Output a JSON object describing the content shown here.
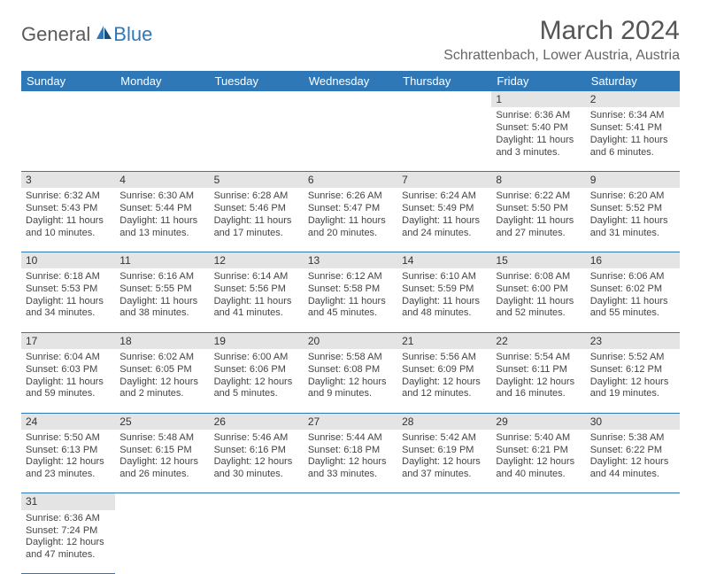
{
  "brand": {
    "general": "General",
    "blue": "Blue"
  },
  "title": "March 2024",
  "subtitle": "Schrattenbach, Lower Austria, Austria",
  "colors": {
    "header_bg": "#2f78b8",
    "header_text": "#ffffff",
    "daynum_bg": "#e4e4e4",
    "cell_border": "#2f78b8",
    "text": "#444444",
    "title_color": "#555555"
  },
  "weekdays": [
    "Sunday",
    "Monday",
    "Tuesday",
    "Wednesday",
    "Thursday",
    "Friday",
    "Saturday"
  ],
  "weeks": [
    [
      null,
      null,
      null,
      null,
      null,
      {
        "n": "1",
        "sr": "Sunrise: 6:36 AM",
        "ss": "Sunset: 5:40 PM",
        "d1": "Daylight: 11 hours",
        "d2": "and 3 minutes."
      },
      {
        "n": "2",
        "sr": "Sunrise: 6:34 AM",
        "ss": "Sunset: 5:41 PM",
        "d1": "Daylight: 11 hours",
        "d2": "and 6 minutes."
      }
    ],
    [
      {
        "n": "3",
        "sr": "Sunrise: 6:32 AM",
        "ss": "Sunset: 5:43 PM",
        "d1": "Daylight: 11 hours",
        "d2": "and 10 minutes."
      },
      {
        "n": "4",
        "sr": "Sunrise: 6:30 AM",
        "ss": "Sunset: 5:44 PM",
        "d1": "Daylight: 11 hours",
        "d2": "and 13 minutes."
      },
      {
        "n": "5",
        "sr": "Sunrise: 6:28 AM",
        "ss": "Sunset: 5:46 PM",
        "d1": "Daylight: 11 hours",
        "d2": "and 17 minutes."
      },
      {
        "n": "6",
        "sr": "Sunrise: 6:26 AM",
        "ss": "Sunset: 5:47 PM",
        "d1": "Daylight: 11 hours",
        "d2": "and 20 minutes."
      },
      {
        "n": "7",
        "sr": "Sunrise: 6:24 AM",
        "ss": "Sunset: 5:49 PM",
        "d1": "Daylight: 11 hours",
        "d2": "and 24 minutes."
      },
      {
        "n": "8",
        "sr": "Sunrise: 6:22 AM",
        "ss": "Sunset: 5:50 PM",
        "d1": "Daylight: 11 hours",
        "d2": "and 27 minutes."
      },
      {
        "n": "9",
        "sr": "Sunrise: 6:20 AM",
        "ss": "Sunset: 5:52 PM",
        "d1": "Daylight: 11 hours",
        "d2": "and 31 minutes."
      }
    ],
    [
      {
        "n": "10",
        "sr": "Sunrise: 6:18 AM",
        "ss": "Sunset: 5:53 PM",
        "d1": "Daylight: 11 hours",
        "d2": "and 34 minutes."
      },
      {
        "n": "11",
        "sr": "Sunrise: 6:16 AM",
        "ss": "Sunset: 5:55 PM",
        "d1": "Daylight: 11 hours",
        "d2": "and 38 minutes."
      },
      {
        "n": "12",
        "sr": "Sunrise: 6:14 AM",
        "ss": "Sunset: 5:56 PM",
        "d1": "Daylight: 11 hours",
        "d2": "and 41 minutes."
      },
      {
        "n": "13",
        "sr": "Sunrise: 6:12 AM",
        "ss": "Sunset: 5:58 PM",
        "d1": "Daylight: 11 hours",
        "d2": "and 45 minutes."
      },
      {
        "n": "14",
        "sr": "Sunrise: 6:10 AM",
        "ss": "Sunset: 5:59 PM",
        "d1": "Daylight: 11 hours",
        "d2": "and 48 minutes."
      },
      {
        "n": "15",
        "sr": "Sunrise: 6:08 AM",
        "ss": "Sunset: 6:00 PM",
        "d1": "Daylight: 11 hours",
        "d2": "and 52 minutes."
      },
      {
        "n": "16",
        "sr": "Sunrise: 6:06 AM",
        "ss": "Sunset: 6:02 PM",
        "d1": "Daylight: 11 hours",
        "d2": "and 55 minutes."
      }
    ],
    [
      {
        "n": "17",
        "sr": "Sunrise: 6:04 AM",
        "ss": "Sunset: 6:03 PM",
        "d1": "Daylight: 11 hours",
        "d2": "and 59 minutes."
      },
      {
        "n": "18",
        "sr": "Sunrise: 6:02 AM",
        "ss": "Sunset: 6:05 PM",
        "d1": "Daylight: 12 hours",
        "d2": "and 2 minutes."
      },
      {
        "n": "19",
        "sr": "Sunrise: 6:00 AM",
        "ss": "Sunset: 6:06 PM",
        "d1": "Daylight: 12 hours",
        "d2": "and 5 minutes."
      },
      {
        "n": "20",
        "sr": "Sunrise: 5:58 AM",
        "ss": "Sunset: 6:08 PM",
        "d1": "Daylight: 12 hours",
        "d2": "and 9 minutes."
      },
      {
        "n": "21",
        "sr": "Sunrise: 5:56 AM",
        "ss": "Sunset: 6:09 PM",
        "d1": "Daylight: 12 hours",
        "d2": "and 12 minutes."
      },
      {
        "n": "22",
        "sr": "Sunrise: 5:54 AM",
        "ss": "Sunset: 6:11 PM",
        "d1": "Daylight: 12 hours",
        "d2": "and 16 minutes."
      },
      {
        "n": "23",
        "sr": "Sunrise: 5:52 AM",
        "ss": "Sunset: 6:12 PM",
        "d1": "Daylight: 12 hours",
        "d2": "and 19 minutes."
      }
    ],
    [
      {
        "n": "24",
        "sr": "Sunrise: 5:50 AM",
        "ss": "Sunset: 6:13 PM",
        "d1": "Daylight: 12 hours",
        "d2": "and 23 minutes."
      },
      {
        "n": "25",
        "sr": "Sunrise: 5:48 AM",
        "ss": "Sunset: 6:15 PM",
        "d1": "Daylight: 12 hours",
        "d2": "and 26 minutes."
      },
      {
        "n": "26",
        "sr": "Sunrise: 5:46 AM",
        "ss": "Sunset: 6:16 PM",
        "d1": "Daylight: 12 hours",
        "d2": "and 30 minutes."
      },
      {
        "n": "27",
        "sr": "Sunrise: 5:44 AM",
        "ss": "Sunset: 6:18 PM",
        "d1": "Daylight: 12 hours",
        "d2": "and 33 minutes."
      },
      {
        "n": "28",
        "sr": "Sunrise: 5:42 AM",
        "ss": "Sunset: 6:19 PM",
        "d1": "Daylight: 12 hours",
        "d2": "and 37 minutes."
      },
      {
        "n": "29",
        "sr": "Sunrise: 5:40 AM",
        "ss": "Sunset: 6:21 PM",
        "d1": "Daylight: 12 hours",
        "d2": "and 40 minutes."
      },
      {
        "n": "30",
        "sr": "Sunrise: 5:38 AM",
        "ss": "Sunset: 6:22 PM",
        "d1": "Daylight: 12 hours",
        "d2": "and 44 minutes."
      }
    ],
    [
      {
        "n": "31",
        "sr": "Sunrise: 6:36 AM",
        "ss": "Sunset: 7:24 PM",
        "d1": "Daylight: 12 hours",
        "d2": "and 47 minutes."
      },
      null,
      null,
      null,
      null,
      null,
      null
    ]
  ]
}
